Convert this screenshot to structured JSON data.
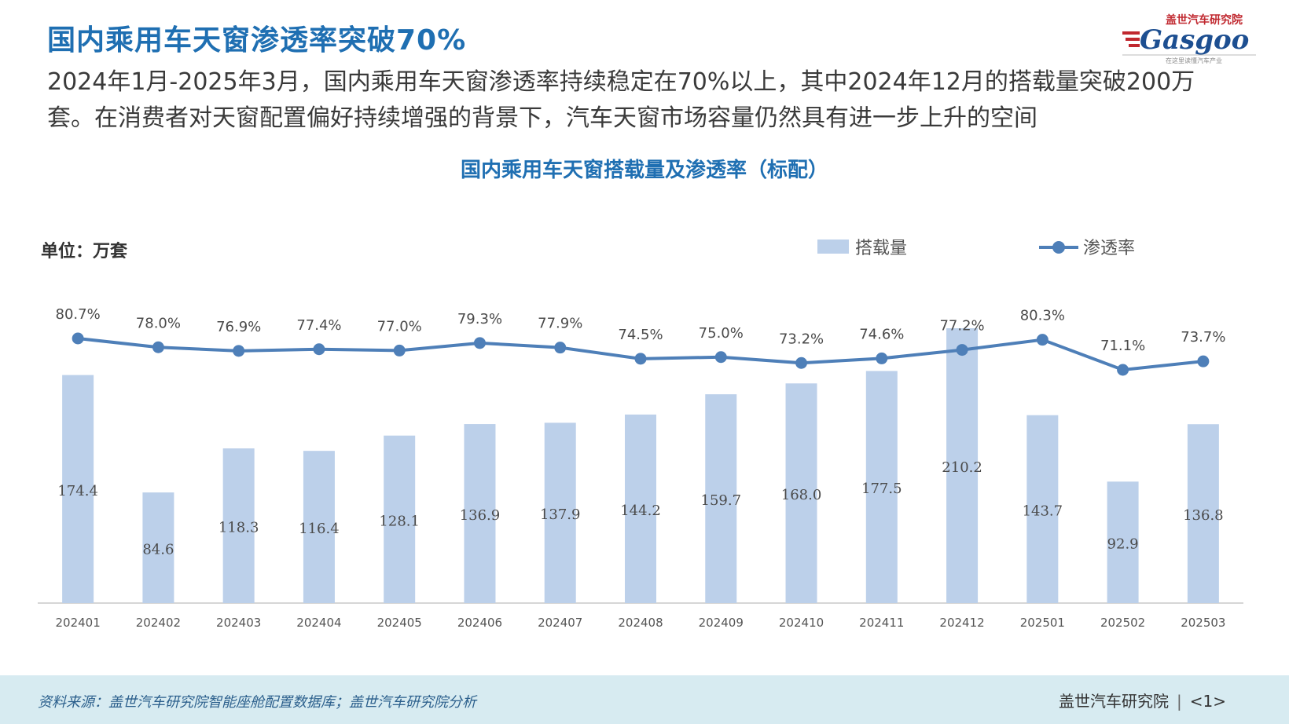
{
  "header": {
    "title": "国内乘用车天窗渗透率突破70%",
    "subtitle": "2024年1月-2025年3月，国内乘用车天窗渗透率持续稳定在70%以上，其中2024年12月的搭载量突破200万套。在消费者对天窗配置偏好持续增强的背景下，汽车天窗市场容量仍然具有进一步上升的空间"
  },
  "logo": {
    "top_text": "盖世汽车研究院",
    "brand": "Gasgoo",
    "tagline": "在这里读懂汽车产业"
  },
  "chart_data": {
    "type": "bar",
    "title": "国内乘用车天窗搭载量及渗透率（标配）",
    "unit_label": "单位：万套",
    "categories": [
      "202401",
      "202402",
      "202403",
      "202404",
      "202405",
      "202406",
      "202407",
      "202408",
      "202409",
      "202410",
      "202411",
      "202412",
      "202501",
      "202502",
      "202503"
    ],
    "series": [
      {
        "name": "搭载量",
        "type": "bar",
        "color": "#bcd0ea",
        "values": [
          174.4,
          84.6,
          118.3,
          116.4,
          128.1,
          136.9,
          137.9,
          144.2,
          159.7,
          168.0,
          177.5,
          210.2,
          143.7,
          92.9,
          136.8
        ],
        "labels": [
          "174.4",
          "84.6",
          "118.3",
          "116.4",
          "128.1",
          "136.9",
          "137.9",
          "144.2",
          "159.7",
          "168.0",
          "177.5",
          "210.2",
          "143.7",
          "92.9",
          "136.8"
        ]
      },
      {
        "name": "渗透率",
        "type": "line",
        "color": "#4e7fb8",
        "values": [
          80.7,
          78.0,
          76.9,
          77.4,
          77.0,
          79.3,
          77.9,
          74.5,
          75.0,
          73.2,
          74.6,
          77.2,
          80.3,
          71.1,
          73.7
        ],
        "labels": [
          "80.7%",
          "78.0%",
          "76.9%",
          "77.4%",
          "77.0%",
          "79.3%",
          "77.9%",
          "74.5%",
          "75.0%",
          "73.2%",
          "74.6%",
          "77.2%",
          "80.3%",
          "71.1%",
          "73.7%"
        ]
      }
    ],
    "legend_placement": "top-right",
    "grid": false
  },
  "footer": {
    "source": "资料来源：盖世汽车研究院智能座舱配置数据库；盖世汽车研究院分析",
    "org": "盖世汽车研究院",
    "separator": "|",
    "page": "<1>"
  }
}
